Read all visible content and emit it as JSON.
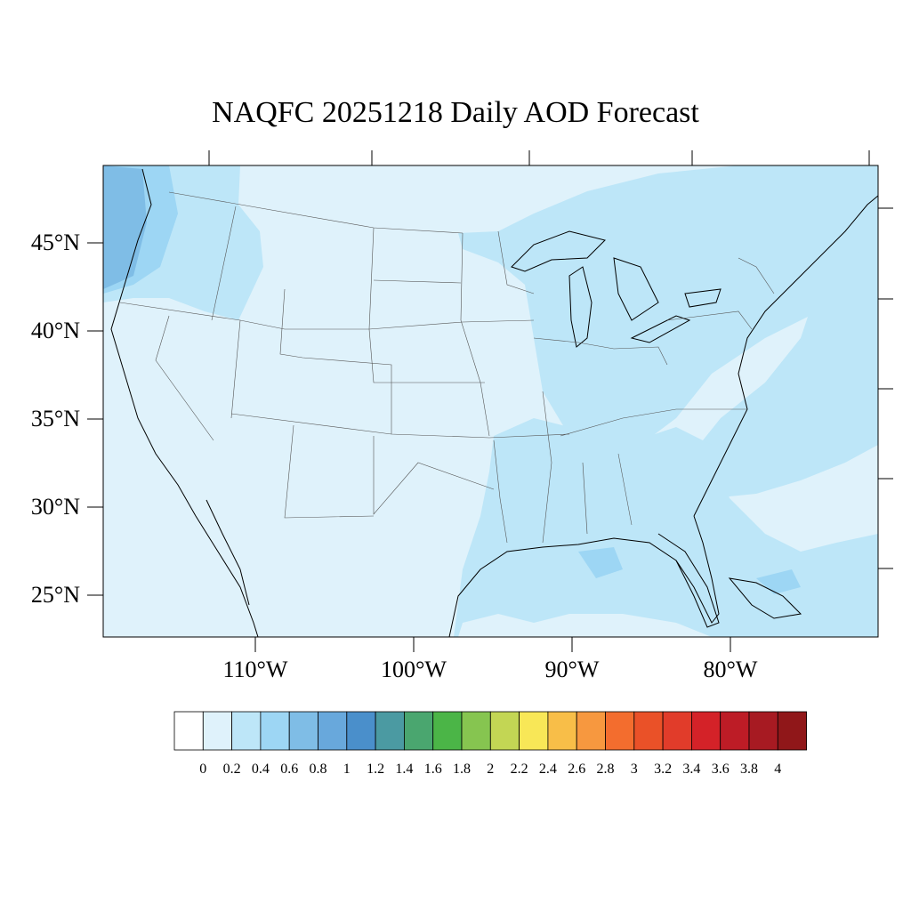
{
  "title": "NAQFC 20251218 Daily AOD Forecast",
  "lat_labels": [
    "45°N",
    "40°N",
    "35°N",
    "30°N",
    "25°N"
  ],
  "lon_labels": [
    "110°W",
    "100°W",
    "90°W",
    "80°W"
  ],
  "colorbar": {
    "labels": [
      "0",
      "0.2",
      "0.4",
      "0.6",
      "0.8",
      "1",
      "1.2",
      "1.4",
      "1.6",
      "1.8",
      "2",
      "2.2",
      "2.4",
      "2.6",
      "2.8",
      "3",
      "3.2",
      "3.4",
      "3.6",
      "3.8",
      "4"
    ],
    "colors": [
      "#ffffff",
      "#dff2fb",
      "#bde6f8",
      "#9dd6f4",
      "#7fbde6",
      "#68a8dc",
      "#4a8fcb",
      "#4b9aa2",
      "#4aa66f",
      "#4bb547",
      "#86c550",
      "#c3d654",
      "#f8e757",
      "#f8be48",
      "#f7983f",
      "#f36d2e",
      "#ea5128",
      "#e13c2a",
      "#d42228",
      "#bd1c26",
      "#a71a22",
      "#901719"
    ]
  },
  "map_colors": {
    "background": "#dff2fb",
    "level_04": "#bde6f8",
    "level_06": "#9dd6f4",
    "level_08": "#7fbde6",
    "level_10": "#68a8dc"
  }
}
